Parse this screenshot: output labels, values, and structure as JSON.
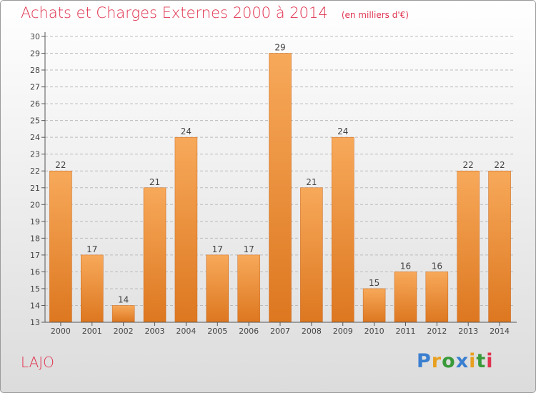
{
  "title": "Achats et Charges Externes 2000 à 2014",
  "unit_note": "(en milliers d'€)",
  "commune": "LAJO",
  "brand": {
    "letters": [
      "P",
      "r",
      "o",
      "x",
      "i",
      "t",
      "i"
    ],
    "colors": [
      "#3a7fd0",
      "#e8a020",
      "#3a9a3a",
      "#3a7fd0",
      "#e8a020",
      "#3a9a3a",
      "#e0334f"
    ]
  },
  "colors": {
    "accent": "#e0334f",
    "bar_light": "#f7a95a",
    "bar_dark": "#dd7720",
    "axis": "#555555",
    "grid": "#bcbcbc"
  },
  "chart_data": {
    "type": "bar",
    "categories": [
      "2000",
      "2001",
      "2002",
      "2003",
      "2004",
      "2005",
      "2006",
      "2007",
      "2008",
      "2009",
      "2010",
      "2011",
      "2012",
      "2013",
      "2014"
    ],
    "values": [
      22,
      17,
      14,
      21,
      24,
      17,
      17,
      29,
      21,
      24,
      15,
      16,
      16,
      22,
      22
    ],
    "ylim": [
      13,
      30
    ],
    "yticks": [
      13,
      14,
      15,
      16,
      17,
      18,
      19,
      20,
      21,
      22,
      23,
      24,
      25,
      26,
      27,
      28,
      29,
      30
    ],
    "grid": true,
    "data_labels": true
  }
}
